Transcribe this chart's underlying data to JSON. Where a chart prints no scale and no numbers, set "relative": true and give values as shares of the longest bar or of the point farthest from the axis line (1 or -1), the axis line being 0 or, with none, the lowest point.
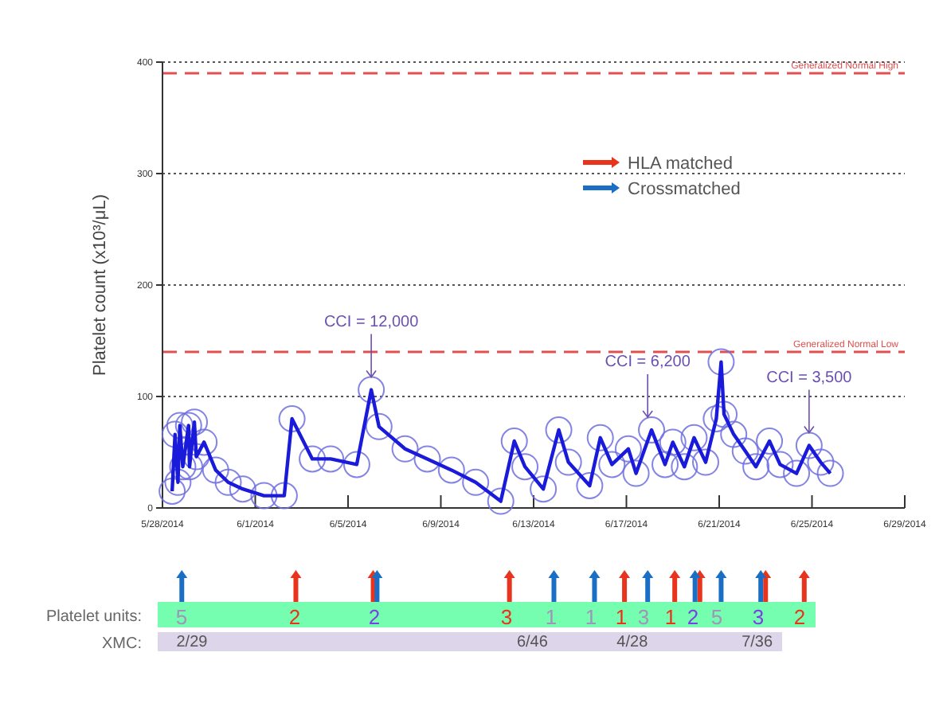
{
  "chart_data": [
    {
      "type": "line",
      "ylabel": "Platelet count (x10³/μL)",
      "xlim": [
        "2014-05-28",
        "2014-06-29"
      ],
      "ylim": [
        0,
        400
      ],
      "xticks": [
        {
          "value": "2014-05-28",
          "label": "5/28/2014"
        },
        {
          "value": "2014-06-01",
          "label": "6/1/2014"
        },
        {
          "value": "2014-06-05",
          "label": "6/5/2014"
        },
        {
          "value": "2014-06-09",
          "label": "6/9/2014"
        },
        {
          "value": "2014-06-13",
          "label": "6/13/2014"
        },
        {
          "value": "2014-06-17",
          "label": "6/17/2014"
        },
        {
          "value": "2014-06-21",
          "label": "6/21/2014"
        },
        {
          "value": "2014-06-25",
          "label": "6/25/2014"
        },
        {
          "value": "2014-06-29",
          "label": "6/29/2014"
        }
      ],
      "yticks": [
        0,
        100,
        200,
        300,
        400
      ],
      "grid": "y",
      "marker": "circle",
      "line_style": "solid",
      "series": [
        {
          "color": "#1a1adb",
          "x": [
            "2014-05-28T10:00",
            "2014-05-28T13:00",
            "2014-05-28T16:00",
            "2014-05-28T18:00",
            "2014-05-28T21:00",
            "2014-05-29T03:00",
            "2014-05-29T04:00",
            "2014-05-29T09:00",
            "2014-05-29T11:00",
            "2014-05-29T19:00",
            "2014-05-30T07:00",
            "2014-05-30T20:00",
            "2014-05-31T11:00",
            "2014-06-01T09:00",
            "2014-06-02T06:00",
            "2014-06-02T14:00",
            "2014-06-03T11:00",
            "2014-06-04T06:00",
            "2014-06-05T09:00",
            "2014-06-06T00:00",
            "2014-06-06T08:00",
            "2014-06-07T11:00",
            "2014-06-08T10:00",
            "2014-06-09T11:00",
            "2014-06-10T12:00",
            "2014-06-11T14:00",
            "2014-06-12T04:00",
            "2014-06-12T15:00",
            "2014-06-13T10:00",
            "2014-06-14T02:00",
            "2014-06-14T12:00",
            "2014-06-15T10:00",
            "2014-06-15T21:00",
            "2014-06-16T09:00",
            "2014-06-17T02:00",
            "2014-06-17T10:00",
            "2014-06-18T02:00",
            "2014-06-18T16:00",
            "2014-06-19T00:00",
            "2014-06-19T12:00",
            "2014-06-19T22:00",
            "2014-06-20T10:00",
            "2014-06-20T21:00",
            "2014-06-21T02:00",
            "2014-06-21T05:00",
            "2014-06-21T15:00",
            "2014-06-22T03:00",
            "2014-06-22T14:00",
            "2014-06-23T04:00",
            "2014-06-23T15:00",
            "2014-06-24T08:00",
            "2014-06-24T21:00",
            "2014-06-25T09:00",
            "2014-06-25T19:00"
          ],
          "values": [
            15,
            66,
            23,
            74,
            37,
            74,
            37,
            77,
            46,
            59,
            34,
            23,
            17,
            11,
            11,
            80,
            44,
            44,
            39,
            106,
            73,
            53,
            44,
            34,
            23,
            6,
            60,
            37,
            17,
            70,
            41,
            20,
            63,
            39,
            53,
            31,
            70,
            39,
            59,
            37,
            63,
            41,
            80,
            131,
            84,
            66,
            51,
            37,
            60,
            39,
            31,
            56,
            41,
            31
          ]
        }
      ],
      "ref_lines": [
        {
          "axis": "y",
          "value": 390,
          "label": "Generalized Normal High",
          "color": "#e05050",
          "line_style": "dashed"
        },
        {
          "axis": "y",
          "value": 140,
          "label": "Generalized Normal Low",
          "color": "#e05050",
          "line_style": "dashed"
        }
      ],
      "annotations": [
        {
          "text": "CCI = 12,000",
          "x": "2014-06-06T00:00",
          "y": 106
        },
        {
          "text": "CCI = 6,200",
          "x": "2014-06-17T22:00",
          "y": 70
        },
        {
          "text": "CCI = 3,500",
          "x": "2014-06-24T21:00",
          "y": 56
        }
      ]
    },
    {
      "type": "bar",
      "relative": true,
      "xlim": [
        "2014-05-28",
        "2014-06-29"
      ],
      "legend": "top right",
      "series": [
        {
          "name": "HLA matched",
          "color": "#e8341c",
          "x": [
            "2014-06-02T18:00",
            "2014-06-06T02:00",
            "2014-06-11T23:00",
            "2014-06-16T22:00",
            "2014-06-19T02:00",
            "2014-06-20T04:00",
            "2014-06-23T00:00",
            "2014-06-24T16:00"
          ],
          "values": [
            1,
            1,
            1,
            1,
            1,
            1,
            1,
            1
          ]
        },
        {
          "name": "Crossmatched",
          "color": "#1a6fc4",
          "x": [
            "2014-05-28T20:00",
            "2014-06-06T06:00",
            "2014-06-13T21:00",
            "2014-06-15T15:00",
            "2014-06-17T22:00",
            "2014-06-19T23:00",
            "2014-06-21T02:00",
            "2014-06-22T19:00"
          ],
          "values": [
            1,
            1,
            1,
            1,
            1,
            1,
            1,
            1
          ]
        }
      ]
    },
    {
      "type": "other",
      "ylabel": "Platelet units:",
      "data_labels": true,
      "values": [
        5,
        2,
        2,
        3,
        1,
        1,
        1,
        3,
        1,
        2,
        5,
        3,
        2
      ],
      "colors": [
        "#a094b8",
        "#e8341c",
        "#7b3fe4",
        "#e8341c",
        "#a094b8",
        "#a094b8",
        "#e8341c",
        "#a094b8",
        "#e8341c",
        "#7b3fe4",
        "#a094b8",
        "#7b3fe4",
        "#e8341c"
      ]
    },
    {
      "type": "other",
      "ylabel": "XMC:",
      "annotations": [
        "2/29",
        "6/46",
        "4/28",
        "7/36"
      ]
    }
  ]
}
